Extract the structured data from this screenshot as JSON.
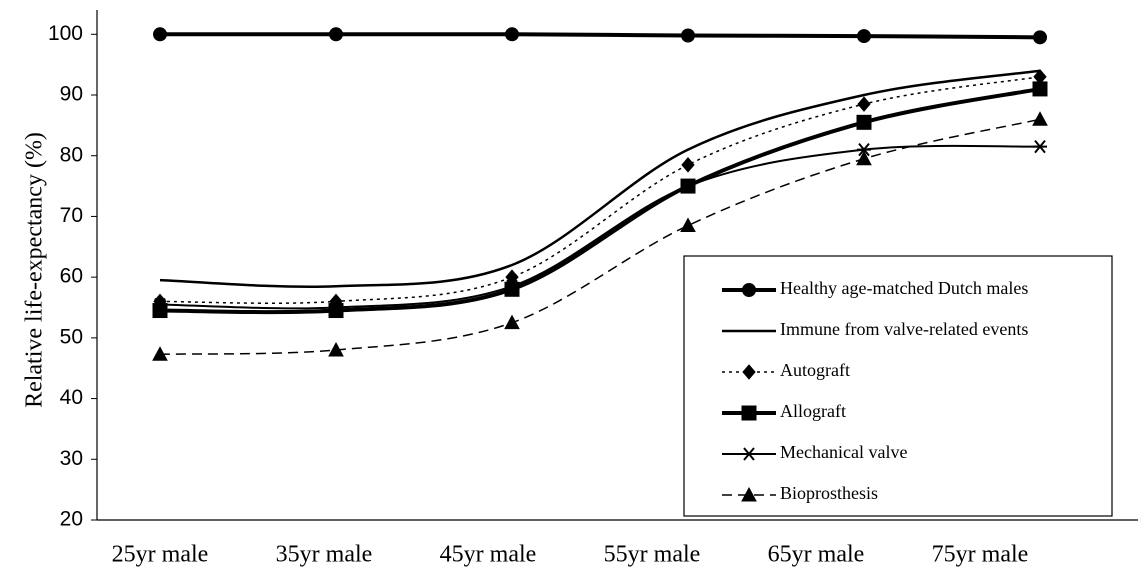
{
  "chart_data": {
    "type": "line",
    "ylabel": "Relative life-expectancy (%)",
    "categories": [
      "25yr male",
      "35yr male",
      "45yr male",
      "55yr male",
      "65yr male",
      "75yr male"
    ],
    "series": [
      {
        "name": "Healthy age-matched Dutch males",
        "color": "#000000",
        "marker": "circle",
        "line_style": "solid",
        "line_width": 4,
        "values": [
          100,
          100,
          100,
          99.8,
          99.7,
          99.5
        ]
      },
      {
        "name": "Immune from valve-related events",
        "color": "#000000",
        "marker": "none",
        "line_style": "solid",
        "line_width": 2.5,
        "values": [
          59.5,
          58.5,
          62,
          81,
          90,
          94
        ]
      },
      {
        "name": "Autograft",
        "color": "#000000",
        "marker": "diamond",
        "line_style": "dotted",
        "line_width": 1.5,
        "values": [
          56,
          56,
          60,
          78.5,
          88.5,
          93
        ]
      },
      {
        "name": "Allograft",
        "color": "#000000",
        "marker": "square",
        "line_style": "solid",
        "line_width": 4,
        "values": [
          54.5,
          54.5,
          58,
          75,
          85.5,
          91
        ]
      },
      {
        "name": "Mechanical valve",
        "color": "#000000",
        "marker": "star",
        "line_style": "solid",
        "line_width": 2,
        "values": [
          55.5,
          55,
          58.5,
          75,
          81,
          81.5
        ]
      },
      {
        "name": "Bioprosthesis",
        "color": "#000000",
        "marker": "triangle",
        "line_style": "dashed",
        "line_width": 1.5,
        "values": [
          47.3,
          48,
          52.5,
          68.5,
          79.5,
          86
        ]
      }
    ],
    "ylim": [
      20,
      104
    ],
    "yticks": [
      20,
      30,
      40,
      50,
      60,
      70,
      80,
      90,
      100
    ],
    "grid": false,
    "legend": "lower right"
  }
}
